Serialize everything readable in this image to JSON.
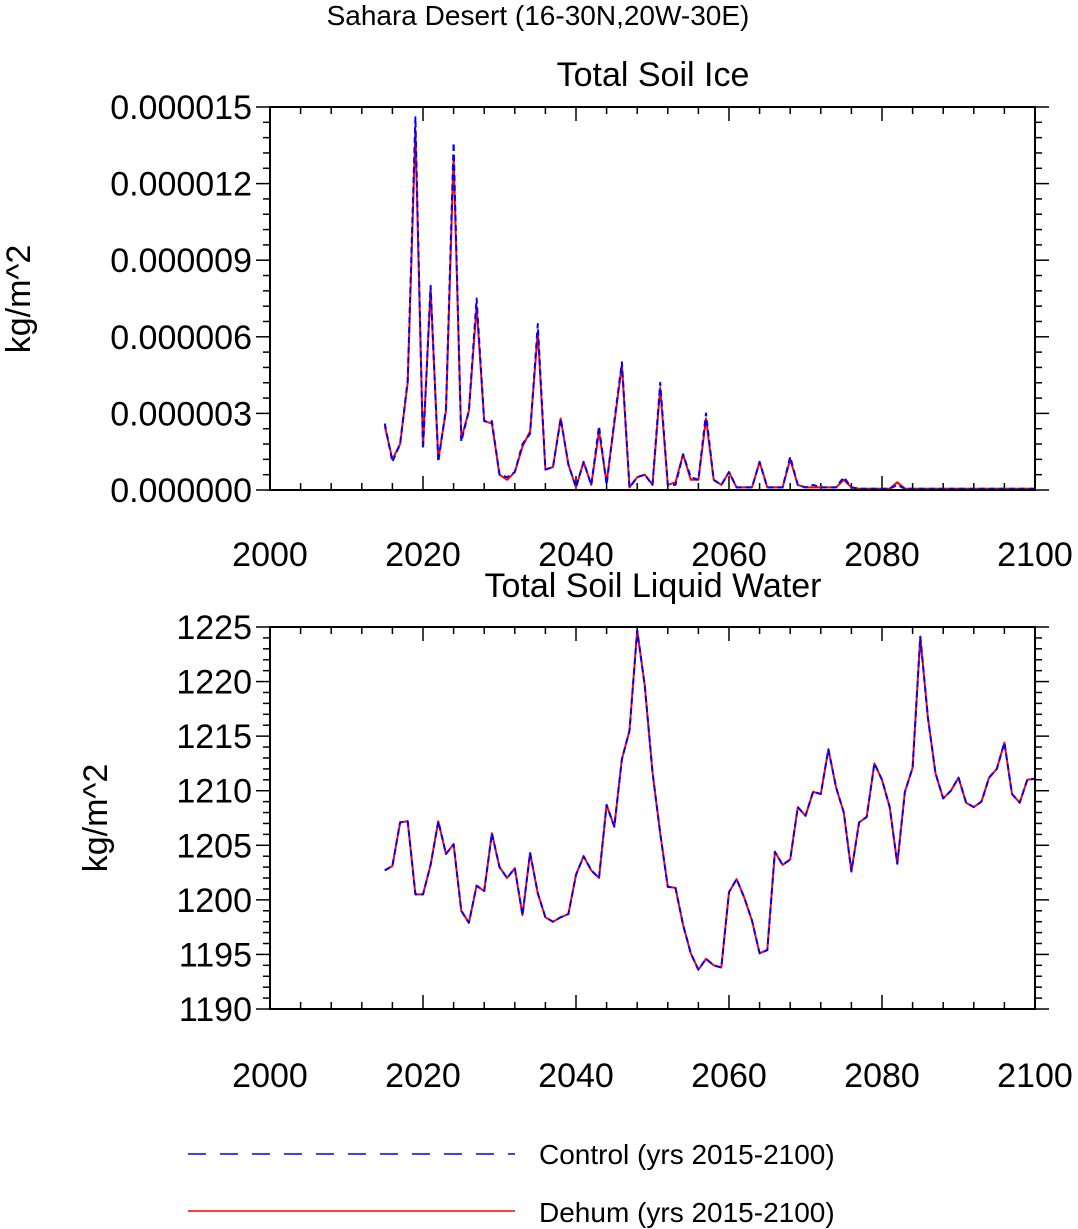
{
  "figure": {
    "main_title": "Sahara Desert (16-30N,20W-30E)",
    "legend": [
      {
        "label": "Control (yrs 2015-2100)",
        "color": "#0000ff",
        "dash": "dashed"
      },
      {
        "label": "Dehum (yrs 2015-2100)",
        "color": "#ff0000",
        "dash": "solid"
      }
    ]
  },
  "chart_data": [
    {
      "type": "line",
      "title": "Total Soil Ice",
      "xlabel": "",
      "ylabel": "kg/m^2",
      "xlim": [
        2000,
        2100
      ],
      "ylim": [
        0,
        1.5e-05
      ],
      "x_ticks": [
        2000,
        2020,
        2040,
        2060,
        2080,
        2100
      ],
      "y_ticks": [
        0,
        3e-06,
        6e-06,
        9e-06,
        1.2e-05,
        1.5e-05
      ],
      "y_tick_labels": [
        "0.000000",
        "0.000003",
        "0.000006",
        "0.000009",
        "0.000012",
        "0.000015"
      ],
      "x_start": 2015,
      "series": [
        {
          "name": "Control (yrs 2015-2100)",
          "color": "#0000ff",
          "values": [
            2.6e-06,
            1.1e-06,
            1.8e-06,
            4.3e-06,
            1.46e-05,
            1.6e-06,
            8e-06,
            1.1e-06,
            3.2e-06,
            1.36e-05,
            1.9e-06,
            3.1e-06,
            7.5e-06,
            2.7e-06,
            2.7e-06,
            6e-07,
            5e-07,
            7e-07,
            1.8e-06,
            2.2e-06,
            6.5e-06,
            8e-07,
            9e-07,
            2.8e-06,
            1e-06,
            1e-07,
            1.1e-06,
            2e-07,
            2.5e-06,
            2e-07,
            2.7e-06,
            5e-06,
            1e-07,
            5e-07,
            6e-07,
            2e-07,
            4.2e-06,
            2e-07,
            2e-07,
            1.4e-06,
            5e-07,
            4e-07,
            3e-06,
            4e-07,
            2e-07,
            7e-07,
            1e-07,
            1e-07,
            1e-07,
            1.1e-06,
            1e-07,
            1e-07,
            1e-07,
            1.3e-06,
            2e-07,
            1e-07,
            2e-07,
            1e-07,
            1e-07,
            1e-07,
            5e-07,
            1e-07,
            5e-08,
            5e-08,
            5e-08,
            5e-08,
            5e-08,
            2e-07,
            5e-08,
            5e-08,
            5e-08,
            5e-08,
            5e-08,
            5e-08,
            5e-08,
            5e-08,
            5e-08,
            5e-08,
            5e-08,
            5e-08,
            5e-08,
            5e-08,
            5e-08,
            5e-08,
            5e-08,
            5e-08
          ]
        },
        {
          "name": "Dehum (yrs 2015-2100)",
          "color": "#ff0000",
          "values": [
            2.5e-06,
            1.2e-06,
            1.8e-06,
            4.2e-06,
            1.41e-05,
            1.7e-06,
            7.9e-06,
            1.2e-06,
            3.1e-06,
            1.31e-05,
            2e-06,
            3.1e-06,
            7.2e-06,
            2.7e-06,
            2.6e-06,
            6e-07,
            4e-07,
            7e-07,
            1.7e-06,
            2.3e-06,
            6.2e-06,
            8e-07,
            9e-07,
            2.8e-06,
            1e-06,
            1e-07,
            1.1e-06,
            2e-07,
            2.3e-06,
            3e-07,
            2.6e-06,
            4.9e-06,
            1e-07,
            5e-07,
            6e-07,
            2e-07,
            4e-06,
            2e-07,
            3e-07,
            1.4e-06,
            4e-07,
            4e-07,
            2.8e-06,
            4e-07,
            2e-07,
            7e-07,
            1e-07,
            1e-07,
            1e-07,
            1.1e-06,
            1e-07,
            1e-07,
            1e-07,
            1.2e-06,
            2e-07,
            1e-07,
            1e-07,
            1e-07,
            1e-07,
            1e-07,
            4e-07,
            1e-07,
            5e-08,
            5e-08,
            5e-08,
            5e-08,
            5e-08,
            3e-07,
            5e-08,
            5e-08,
            5e-08,
            5e-08,
            5e-08,
            5e-08,
            5e-08,
            5e-08,
            5e-08,
            5e-08,
            5e-08,
            5e-08,
            5e-08,
            5e-08,
            5e-08,
            5e-08,
            5e-08,
            5e-08
          ]
        }
      ]
    },
    {
      "type": "line",
      "title": "Total Soil Liquid Water",
      "xlabel": "",
      "ylabel": "kg/m^2",
      "xlim": [
        2000,
        2100
      ],
      "ylim": [
        1190,
        1225
      ],
      "x_ticks": [
        2000,
        2020,
        2040,
        2060,
        2080,
        2100
      ],
      "y_ticks": [
        1190,
        1195,
        1200,
        1205,
        1210,
        1215,
        1220,
        1225
      ],
      "y_tick_labels": [
        "1190",
        "1195",
        "1200",
        "1205",
        "1210",
        "1215",
        "1220",
        "1225"
      ],
      "x_start": 2015,
      "series": [
        {
          "name": "Control (yrs 2015-2100)",
          "color": "#0000ff",
          "values": [
            1202.7,
            1203.1,
            1207.1,
            1207.2,
            1200.5,
            1200.5,
            1203.2,
            1207.2,
            1204.2,
            1205.1,
            1199.0,
            1197.9,
            1201.3,
            1200.8,
            1206.1,
            1203.0,
            1202.0,
            1202.9,
            1198.6,
            1204.3,
            1200.6,
            1198.4,
            1198.0,
            1198.4,
            1198.7,
            1202.3,
            1204.0,
            1202.7,
            1202.0,
            1208.7,
            1206.7,
            1212.9,
            1215.5,
            1224.7,
            1219.6,
            1211.7,
            1206.1,
            1201.2,
            1201.1,
            1197.7,
            1195.1,
            1193.6,
            1194.6,
            1194.0,
            1193.8,
            1200.7,
            1201.9,
            1200.2,
            1198.1,
            1195.1,
            1195.4,
            1204.4,
            1203.2,
            1203.7,
            1208.5,
            1207.7,
            1209.9,
            1209.7,
            1213.8,
            1210.3,
            1208.0,
            1202.6,
            1207.1,
            1207.6,
            1212.5,
            1211.0,
            1208.5,
            1203.3,
            1209.9,
            1212.1,
            1224.1,
            1216.7,
            1211.6,
            1209.3,
            1210.0,
            1211.2,
            1208.9,
            1208.5,
            1209.0,
            1211.2,
            1212.0,
            1214.4,
            1209.7,
            1208.9,
            1211.0,
            1211.1
          ]
        },
        {
          "name": "Dehum (yrs 2015-2100)",
          "color": "#ff0000",
          "values": [
            1202.7,
            1203.1,
            1207.1,
            1207.2,
            1200.5,
            1200.5,
            1203.2,
            1207.2,
            1204.2,
            1205.1,
            1199.0,
            1197.9,
            1201.3,
            1200.8,
            1206.1,
            1203.0,
            1202.0,
            1202.9,
            1198.6,
            1204.3,
            1200.6,
            1198.4,
            1198.0,
            1198.4,
            1198.7,
            1202.3,
            1204.0,
            1202.7,
            1202.0,
            1208.7,
            1206.7,
            1212.9,
            1215.5,
            1224.7,
            1219.6,
            1211.7,
            1206.1,
            1201.2,
            1201.1,
            1197.7,
            1195.1,
            1193.6,
            1194.6,
            1194.0,
            1193.8,
            1200.7,
            1201.9,
            1200.2,
            1198.1,
            1195.1,
            1195.4,
            1204.4,
            1203.2,
            1203.7,
            1208.5,
            1207.7,
            1209.9,
            1209.7,
            1213.8,
            1210.3,
            1208.0,
            1202.6,
            1207.1,
            1207.6,
            1212.5,
            1211.0,
            1208.5,
            1203.3,
            1209.9,
            1212.1,
            1224.1,
            1216.7,
            1211.6,
            1209.3,
            1210.0,
            1211.2,
            1208.9,
            1208.5,
            1209.0,
            1211.2,
            1212.0,
            1214.4,
            1209.7,
            1208.9,
            1211.0,
            1211.1
          ]
        }
      ]
    }
  ]
}
